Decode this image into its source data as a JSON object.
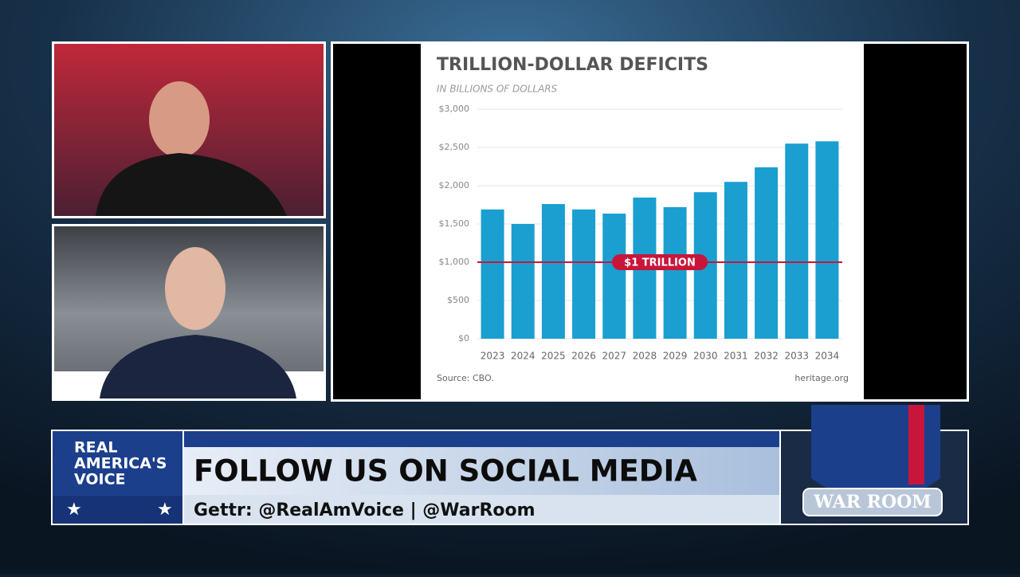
{
  "chart_data": {
    "type": "bar",
    "title": "TRILLION-DOLLAR DEFICITS",
    "subtitle": "IN BILLIONS OF DOLLARS",
    "categories": [
      "2023",
      "2024",
      "2025",
      "2026",
      "2027",
      "2028",
      "2029",
      "2030",
      "2031",
      "2032",
      "2033",
      "2034"
    ],
    "values": [
      1690,
      1500,
      1760,
      1690,
      1635,
      1845,
      1720,
      1915,
      2050,
      2240,
      2550,
      2580
    ],
    "color": "#1a9fd0",
    "ylim": [
      0,
      3000
    ],
    "yticks": [
      {
        "value": 0,
        "label": "$0"
      },
      {
        "value": 500,
        "label": "$500"
      },
      {
        "value": 1000,
        "label": "$1,000"
      },
      {
        "value": 1500,
        "label": "$1,500"
      },
      {
        "value": 2000,
        "label": "$2,000"
      },
      {
        "value": 2500,
        "label": "$2,500"
      },
      {
        "value": 3000,
        "label": "$3,000"
      }
    ],
    "grid": true,
    "reference_line": {
      "value": 1000,
      "label": "$1 TRILLION",
      "color": "#c8163b"
    },
    "source": "Source: CBO.",
    "credit": "heritage.org"
  },
  "broadcast": {
    "headline": "FOLLOW US ON SOCIAL MEDIA",
    "subline": "Gettr: @RealAmVoice | @WarRoom",
    "network_logo": [
      "REAL",
      "AMERICA'S",
      "VOICE"
    ],
    "show_logo": "WAR ROOM"
  }
}
